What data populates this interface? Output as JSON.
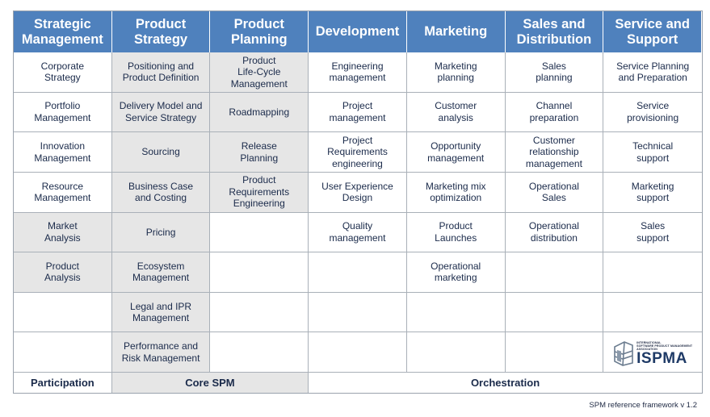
{
  "headers": [
    "Strategic\nManagement",
    "Product\nStrategy",
    "Product\nPlanning",
    "Development",
    "Marketing",
    "Sales and\nDistribution",
    "Service and\nSupport"
  ],
  "rows": [
    [
      "Corporate\nStrategy",
      "Positioning and\nProduct Definition",
      "Product\nLife-Cycle\nManagement",
      "Engineering\nmanagement",
      "Marketing\nplanning",
      "Sales\nplanning",
      "Service Planning\nand Preparation"
    ],
    [
      "Portfolio\nManagement",
      "Delivery Model and\nService Strategy",
      "Roadmapping",
      "Project\nmanagement",
      "Customer\nanalysis",
      "Channel\npreparation",
      "Service\nprovisioning"
    ],
    [
      "Innovation\nManagement",
      "Sourcing",
      "Release\nPlanning",
      "Project\nRequirements\nengineering",
      "Opportunity\nmanagement",
      "Customer\nrelationship\nmanagement",
      "Technical\nsupport"
    ],
    [
      "Resource\nManagement",
      "Business Case\nand Costing",
      "Product\nRequirements\nEngineering",
      "User Experience\nDesign",
      "Marketing mix\noptimization",
      "Operational\nSales",
      "Marketing\nsupport"
    ],
    [
      "Market\nAnalysis",
      "Pricing",
      "",
      "Quality\nmanagement",
      "Product\nLaunches",
      "Operational\ndistribution",
      "Sales\nsupport"
    ],
    [
      "Product\nAnalysis",
      "Ecosystem\nManagement",
      "",
      "",
      "Operational\nmarketing",
      "",
      ""
    ],
    [
      "",
      "Legal and IPR\nManagement",
      "",
      "",
      "",
      "",
      ""
    ],
    [
      "",
      "Performance and\nRisk Management",
      "",
      "",
      "",
      "",
      ""
    ]
  ],
  "footer": {
    "participation": "Participation",
    "core_spm": "Core SPM",
    "orchestration": "Orchestration"
  },
  "logo": {
    "small_text": "INTERNATIONAL\nSOFTWARE PRODUCT MANAGEMENT\nASSOCIATION",
    "name": "ISPMA",
    "icon": "ispma-building-icon"
  },
  "version": "SPM reference framework v 1.2",
  "colors": {
    "header_bg": "#4f81bd",
    "core_bg": "#e6e6e6",
    "border": "#a9b0b8"
  }
}
